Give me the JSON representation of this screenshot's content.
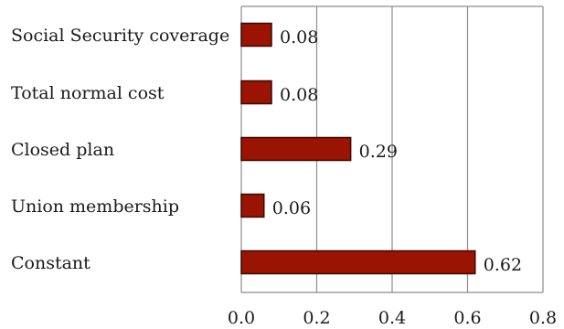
{
  "chart_data": {
    "type": "bar",
    "orientation": "horizontal",
    "categories": [
      "Social Security coverage",
      "Total normal cost",
      "Closed plan",
      "Union membership",
      "Constant"
    ],
    "values": [
      0.08,
      0.08,
      0.29,
      0.06,
      0.62
    ],
    "data_labels": [
      "0.08",
      "0.08",
      "0.29",
      "0.06",
      "0.62"
    ],
    "x_ticks": [
      "0.0",
      "0.2",
      "0.4",
      "0.6",
      "0.8"
    ],
    "xlim": [
      0,
      0.8
    ],
    "grid": "vertical",
    "legend": "none",
    "bar_color": "#9b1302",
    "bar_edge_color": "#3a0a00",
    "gridline_color": "#8c8c8c"
  }
}
